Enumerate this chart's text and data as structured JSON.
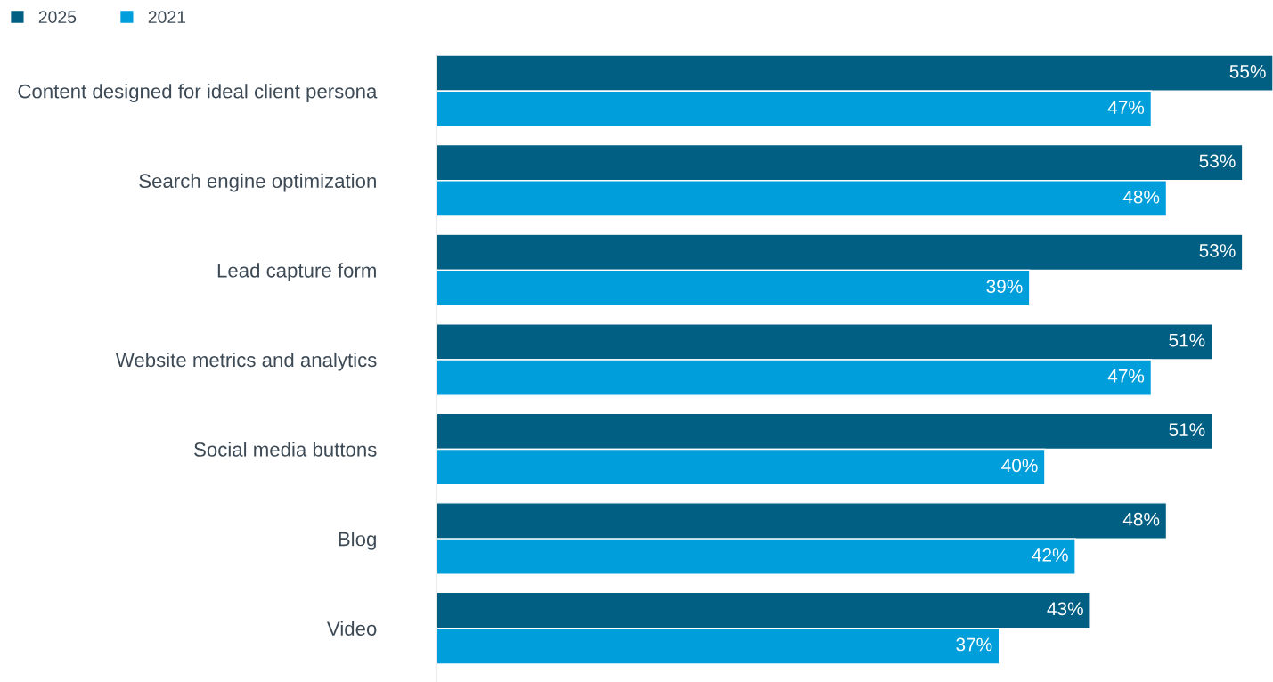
{
  "chart_data": {
    "type": "bar",
    "orientation": "horizontal",
    "categories": [
      "Content designed for ideal client persona",
      "Search engine optimization",
      "Lead capture form",
      "Website metrics and analytics",
      "Social media buttons",
      "Blog",
      "Video"
    ],
    "series": [
      {
        "name": "2025",
        "color": "#005f83",
        "values": [
          55,
          53,
          53,
          51,
          51,
          48,
          43
        ],
        "value_labels": [
          "55%",
          "53%",
          "53%",
          "51%",
          "51%",
          "48%",
          "43%"
        ]
      },
      {
        "name": "2021",
        "color": "#009fdb",
        "values": [
          47,
          48,
          39,
          47,
          40,
          42,
          37
        ],
        "value_labels": [
          "47%",
          "48%",
          "39%",
          "47%",
          "40%",
          "42%",
          "37%"
        ]
      }
    ],
    "legend": "top left"
  }
}
